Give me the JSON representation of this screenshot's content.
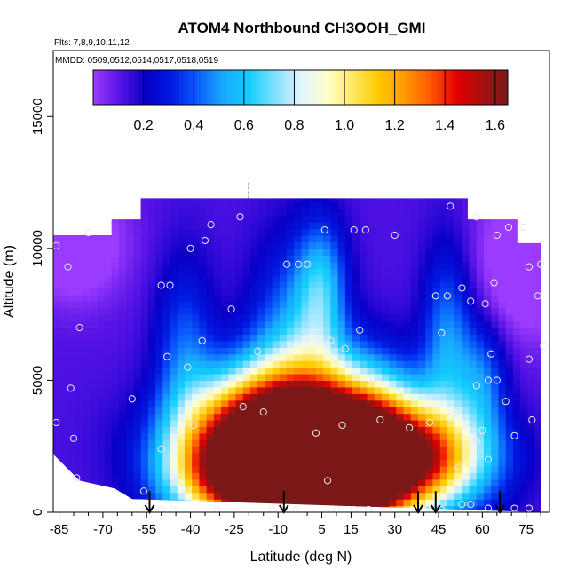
{
  "chart_data": {
    "type": "heatmap",
    "title": "ATOM4 Northbound CH3OOH_GMI",
    "subtitle_flights": "Flts: 7,8,9,10,11,12",
    "subtitle_dates": "MMDD: 0509,0512,0514,0517,0518,0519",
    "xlabel": "Latitude (deg N)",
    "ylabel": "Altitude (m)",
    "xlim": [
      -87,
      83
    ],
    "ylim": [
      0,
      17500
    ],
    "xticks": [
      -85,
      -70,
      -55,
      -40,
      -25,
      -10,
      5,
      15,
      30,
      45,
      60,
      75
    ],
    "xticks_minor": [
      -80,
      -75,
      -65,
      -60,
      -50,
      -45,
      -35,
      -30,
      -20,
      -15,
      0,
      10,
      20,
      25,
      35,
      40,
      50,
      55,
      65,
      70,
      80
    ],
    "xtick_labels": [
      "-85",
      "-70",
      "-55",
      "-40",
      "-25",
      "-10",
      "5",
      "15",
      "30",
      "45",
      "60",
      "75"
    ],
    "yticks": [
      0,
      5000,
      10000,
      15000
    ],
    "ytick_labels": [
      "0",
      "5000",
      "10000",
      "15000"
    ],
    "colorbar": {
      "min": 0.0,
      "max": 1.65,
      "ticks": [
        0.2,
        0.4,
        0.6,
        0.8,
        1.0,
        1.2,
        1.4,
        1.6
      ],
      "tick_labels": [
        "0.2",
        "0.4",
        "0.6",
        "0.8",
        "1.0",
        "1.2",
        "1.4",
        "1.6"
      ],
      "colors": [
        "#9b3bff",
        "#5a14e6",
        "#0a00c8",
        "#0018e0",
        "#0a5cff",
        "#1aa8ff",
        "#12ceff",
        "#7fe0ff",
        "#dff4ff",
        "#ffffcc",
        "#ffe866",
        "#ffcc00",
        "#ff9a00",
        "#ff5a00",
        "#e60000",
        "#a81010",
        "#7a1818"
      ]
    },
    "field_domain": {
      "lat_min": -87,
      "lat_max": 80,
      "alt_min": 0,
      "alt_max": 11900
    },
    "field_centers": [
      {
        "lat": 0,
        "alt": 600,
        "value": 1.6,
        "sigma_lat": 16,
        "sigma_alt": 1100
      },
      {
        "lat": 5,
        "alt": 1700,
        "value": 1.25,
        "sigma_lat": 24,
        "sigma_alt": 1400
      },
      {
        "lat": -8,
        "alt": 2600,
        "value": 1.0,
        "sigma_lat": 24,
        "sigma_alt": 1500
      },
      {
        "lat": 22,
        "alt": 2400,
        "value": 0.9,
        "sigma_lat": 18,
        "sigma_alt": 1600
      },
      {
        "lat": 2,
        "alt": 4200,
        "value": 0.65,
        "sigma_lat": 20,
        "sigma_alt": 1700
      },
      {
        "lat": -30,
        "alt": 1200,
        "value": 0.55,
        "sigma_lat": 14,
        "sigma_alt": 1200
      },
      {
        "lat": -20,
        "alt": 3500,
        "value": 0.45,
        "sigma_lat": 14,
        "sigma_alt": 1400
      },
      {
        "lat": 45,
        "alt": 2000,
        "value": 0.5,
        "sigma_lat": 16,
        "sigma_alt": 1300
      },
      {
        "lat": 5,
        "alt": 8500,
        "value": 0.4,
        "sigma_lat": 6,
        "sigma_alt": 1800
      },
      {
        "lat": -5,
        "alt": 7000,
        "value": 0.3,
        "sigma_lat": 10,
        "sigma_alt": 2500
      },
      {
        "lat": 48,
        "alt": 6500,
        "value": 0.35,
        "sigma_lat": 6,
        "sigma_alt": 2500
      },
      {
        "lat": -42,
        "alt": 6000,
        "value": 0.28,
        "sigma_lat": 7,
        "sigma_alt": 2500
      },
      {
        "lat": 60,
        "alt": 5000,
        "value": 0.3,
        "sigma_lat": 6,
        "sigma_alt": 1600
      },
      {
        "lat": -80,
        "alt": 10200,
        "value": -0.25,
        "sigma_lat": 12,
        "sigma_alt": 1500
      },
      {
        "lat": 75,
        "alt": 9500,
        "value": -0.25,
        "sigma_lat": 12,
        "sigma_alt": 2000
      }
    ],
    "field_base": 0.12,
    "upper_bound": [
      {
        "lat": -87,
        "alt": 10500
      },
      {
        "lat": -67,
        "alt": 10500
      },
      {
        "lat": -67,
        "alt": 11100
      },
      {
        "lat": -57,
        "alt": 11100
      },
      {
        "lat": -57,
        "alt": 11900
      },
      {
        "lat": 55,
        "alt": 11900
      },
      {
        "lat": 55,
        "alt": 11100
      },
      {
        "lat": 72,
        "alt": 11100
      },
      {
        "lat": 72,
        "alt": 10200
      },
      {
        "lat": 80,
        "alt": 10200
      }
    ],
    "lower_bound": [
      {
        "lat": -87,
        "alt": 2200
      },
      {
        "lat": -78,
        "alt": 1200
      },
      {
        "lat": -66,
        "alt": 900
      },
      {
        "lat": -60,
        "alt": 500
      },
      {
        "lat": 80,
        "alt": 0
      }
    ],
    "sample_points": [
      {
        "lat": -86,
        "alt": 10100
      },
      {
        "lat": -82,
        "alt": 9300
      },
      {
        "lat": -75,
        "alt": 10600
      },
      {
        "lat": -78,
        "alt": 7000
      },
      {
        "lat": -81,
        "alt": 4700
      },
      {
        "lat": -80,
        "alt": 2800
      },
      {
        "lat": -79,
        "alt": 1300
      },
      {
        "lat": -86,
        "alt": 3400
      },
      {
        "lat": -56,
        "alt": 800
      },
      {
        "lat": -55,
        "alt": 200
      },
      {
        "lat": -50,
        "alt": 100
      },
      {
        "lat": -46,
        "alt": 100
      },
      {
        "lat": -50,
        "alt": 2400
      },
      {
        "lat": -50,
        "alt": 8600
      },
      {
        "lat": -47,
        "alt": 8600
      },
      {
        "lat": -48,
        "alt": 5900
      },
      {
        "lat": -40,
        "alt": 10000
      },
      {
        "lat": -35,
        "alt": 10300
      },
      {
        "lat": -33,
        "alt": 10900
      },
      {
        "lat": -41,
        "alt": 5500
      },
      {
        "lat": -39,
        "alt": 3300
      },
      {
        "lat": -36,
        "alt": 6500
      },
      {
        "lat": -26,
        "alt": 7700
      },
      {
        "lat": -23,
        "alt": 11200
      },
      {
        "lat": -22,
        "alt": 4000
      },
      {
        "lat": -15,
        "alt": 3800
      },
      {
        "lat": -17,
        "alt": 6100
      },
      {
        "lat": -7,
        "alt": 9400
      },
      {
        "lat": -3,
        "alt": 9400
      },
      {
        "lat": 0,
        "alt": 9400
      },
      {
        "lat": 6,
        "alt": 10700
      },
      {
        "lat": 16,
        "alt": 10700
      },
      {
        "lat": 20,
        "alt": 10700
      },
      {
        "lat": 30,
        "alt": 10500
      },
      {
        "lat": -1,
        "alt": 6600
      },
      {
        "lat": 8,
        "alt": 6500
      },
      {
        "lat": 13,
        "alt": 6200
      },
      {
        "lat": 18,
        "alt": 6900
      },
      {
        "lat": 3,
        "alt": 3000
      },
      {
        "lat": 7,
        "alt": 1200
      },
      {
        "lat": 12,
        "alt": 3300
      },
      {
        "lat": 25,
        "alt": 3500
      },
      {
        "lat": 35,
        "alt": 3200
      },
      {
        "lat": 42,
        "alt": 3400
      },
      {
        "lat": 49,
        "alt": 3600
      },
      {
        "lat": 44,
        "alt": 8200
      },
      {
        "lat": 48,
        "alt": 8200
      },
      {
        "lat": 53,
        "alt": 8500
      },
      {
        "lat": 56,
        "alt": 8000
      },
      {
        "lat": 61,
        "alt": 7900
      },
      {
        "lat": 63,
        "alt": 6000
      },
      {
        "lat": 46,
        "alt": 6800
      },
      {
        "lat": 49,
        "alt": 11600
      },
      {
        "lat": 58,
        "alt": 11200
      },
      {
        "lat": 65,
        "alt": 10500
      },
      {
        "lat": 69,
        "alt": 10800
      },
      {
        "lat": 74,
        "alt": 10800
      },
      {
        "lat": 64,
        "alt": 8700
      },
      {
        "lat": 76,
        "alt": 9300
      },
      {
        "lat": 80,
        "alt": 9400
      },
      {
        "lat": 79,
        "alt": 8200
      },
      {
        "lat": 81,
        "alt": 6300
      },
      {
        "lat": 76,
        "alt": 5800
      },
      {
        "lat": 62,
        "alt": 5000
      },
      {
        "lat": 65,
        "alt": 5000
      },
      {
        "lat": 58,
        "alt": 4800
      },
      {
        "lat": 68,
        "alt": 4200
      },
      {
        "lat": 71,
        "alt": 2900
      },
      {
        "lat": 77,
        "alt": 3500
      },
      {
        "lat": 60,
        "alt": 3100
      },
      {
        "lat": 62,
        "alt": 2000
      },
      {
        "lat": 58,
        "alt": 2700
      },
      {
        "lat": 52,
        "alt": 1700
      },
      {
        "lat": 56,
        "alt": 300
      },
      {
        "lat": 62,
        "alt": 150
      },
      {
        "lat": 71,
        "alt": 150
      },
      {
        "lat": 76,
        "alt": 150
      },
      {
        "lat": 46,
        "alt": 100
      },
      {
        "lat": 53,
        "alt": 300
      },
      {
        "lat": -31,
        "alt": 100
      },
      {
        "lat": -12,
        "alt": 100
      },
      {
        "lat": -4,
        "alt": 100
      },
      {
        "lat": 10,
        "alt": 100
      },
      {
        "lat": 16,
        "alt": 100
      },
      {
        "lat": 21,
        "alt": 100
      },
      {
        "lat": -60,
        "alt": 4300
      },
      {
        "lat": -88,
        "alt": 10100
      }
    ],
    "dashed_marker": {
      "lat": -20,
      "alt_from": 11900,
      "alt_to": 12500
    },
    "arrows": [
      {
        "lat": -54,
        "alt_from": 800,
        "alt_to": 0
      },
      {
        "lat": -8,
        "alt_from": 800,
        "alt_to": 0
      },
      {
        "lat": 38,
        "alt_from": 800,
        "alt_to": 0
      },
      {
        "lat": 44,
        "alt_from": 800,
        "alt_to": 0
      },
      {
        "lat": 66,
        "alt_from": 800,
        "alt_to": 0
      }
    ]
  }
}
